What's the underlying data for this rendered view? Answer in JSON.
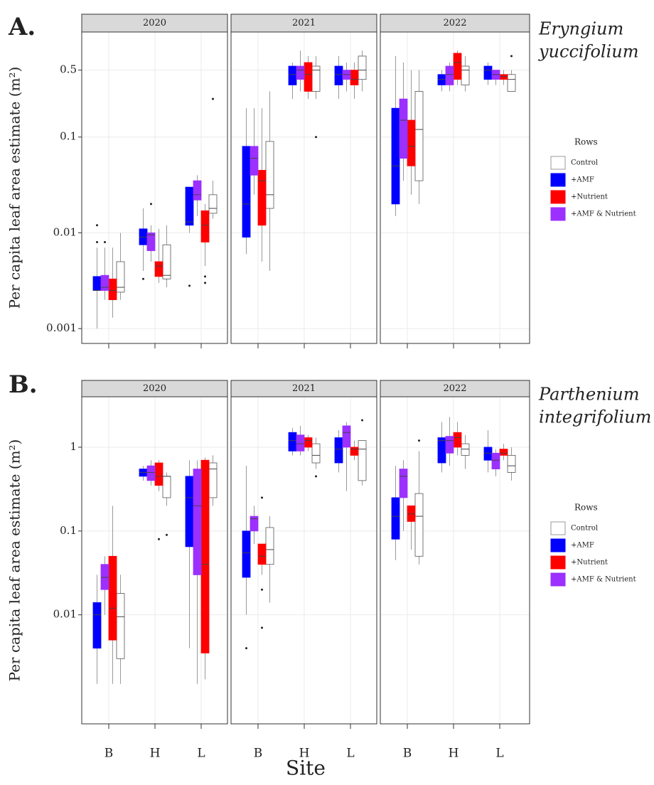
{
  "chart_data": [
    {
      "type": "box",
      "label": "A.",
      "species": [
        "Eryngium",
        "yuccifolium"
      ],
      "ylabel": "Per capita leaf area estimate (m²)",
      "facets": [
        "2020",
        "2021",
        "2022"
      ],
      "categories": [
        "B",
        "H",
        "L"
      ],
      "log": true,
      "grid": true,
      "ylim": [
        0.0007,
        1.25
      ],
      "yticks": [
        0.001,
        0.01,
        0.1,
        0.5
      ],
      "legend_title": "Rows",
      "legend": "right",
      "series": [
        {
          "name": "Control",
          "color": "#ffffff",
          "values": [
            [
              {
                "low": 0.002,
                "q1": 0.0024,
                "median": 0.0027,
                "q3": 0.005,
                "high": 0.01
              },
              {
                "low": 0.0027,
                "q1": 0.0033,
                "median": 0.0036,
                "q3": 0.0075,
                "high": 0.012
              },
              {
                "low": 0.014,
                "q1": 0.016,
                "median": 0.018,
                "q3": 0.025,
                "high": 0.035,
                "outliers": [
                  0.25
                ]
              }
            ],
            [
              {
                "low": 0.004,
                "q1": 0.018,
                "median": 0.025,
                "q3": 0.09,
                "high": 0.3
              },
              {
                "low": 0.25,
                "q1": 0.3,
                "median": 0.5,
                "q3": 0.55,
                "high": 0.7,
                "outliers": [
                  0.1
                ]
              },
              {
                "low": 0.3,
                "q1": 0.4,
                "median": 0.5,
                "q3": 0.7,
                "high": 0.8
              }
            ],
            [
              {
                "low": 0.02,
                "q1": 0.035,
                "median": 0.12,
                "q3": 0.3,
                "high": 0.5
              },
              {
                "low": 0.3,
                "q1": 0.35,
                "median": 0.5,
                "q3": 0.55,
                "high": 0.7
              },
              {
                "low": 0.3,
                "q1": 0.3,
                "median": 0.4,
                "q3": 0.45,
                "high": 0.5,
                "outliers": [
                  0.7
                ]
              }
            ]
          ]
        },
        {
          "name": "+AMF",
          "color": "#0000ff",
          "values": [
            [
              {
                "low": 0.001,
                "q1": 0.0025,
                "median": 0.0025,
                "q3": 0.0035,
                "high": 0.007,
                "outliers": [
                  0.008,
                  0.012
                ]
              },
              {
                "low": 0.004,
                "q1": 0.0075,
                "median": 0.009,
                "q3": 0.011,
                "high": 0.018,
                "outliers": [
                  0.0033
                ]
              },
              {
                "low": 0.01,
                "q1": 0.012,
                "median": 0.013,
                "q3": 0.03,
                "high": 0.03,
                "outliers": [
                  0.0028
                ]
              }
            ],
            [
              {
                "low": 0.006,
                "q1": 0.009,
                "median": 0.02,
                "q3": 0.08,
                "high": 0.2
              },
              {
                "low": 0.25,
                "q1": 0.35,
                "median": 0.45,
                "q3": 0.55,
                "high": 0.6
              },
              {
                "low": 0.25,
                "q1": 0.35,
                "median": 0.45,
                "q3": 0.55,
                "high": 0.7
              }
            ],
            [
              {
                "low": 0.015,
                "q1": 0.02,
                "median": 0.05,
                "q3": 0.2,
                "high": 0.7
              },
              {
                "low": 0.3,
                "q1": 0.35,
                "median": 0.4,
                "q3": 0.45,
                "high": 0.5
              },
              {
                "low": 0.35,
                "q1": 0.4,
                "median": 0.5,
                "q3": 0.55,
                "high": 0.6
              }
            ]
          ]
        },
        {
          "name": "+Nutrient",
          "color": "#ff0000",
          "values": [
            [
              {
                "low": 0.0013,
                "q1": 0.002,
                "median": 0.0025,
                "q3": 0.0033,
                "high": 0.007
              },
              {
                "low": 0.003,
                "q1": 0.0035,
                "median": 0.0045,
                "q3": 0.005,
                "high": 0.011
              },
              {
                "low": 0.0045,
                "q1": 0.008,
                "median": 0.012,
                "q3": 0.017,
                "high": 0.02,
                "outliers": [
                  0.0035,
                  0.003
                ]
              }
            ],
            [
              {
                "low": 0.005,
                "q1": 0.012,
                "median": 0.035,
                "q3": 0.045,
                "high": 0.2
              },
              {
                "low": 0.25,
                "q1": 0.3,
                "median": 0.45,
                "q3": 0.6,
                "high": 0.7
              },
              {
                "low": 0.25,
                "q1": 0.35,
                "median": 0.4,
                "q3": 0.5,
                "high": 0.6
              }
            ],
            [
              {
                "low": 0.025,
                "q1": 0.05,
                "median": 0.08,
                "q3": 0.15,
                "high": 0.5
              },
              {
                "low": 0.35,
                "q1": 0.4,
                "median": 0.6,
                "q3": 0.75,
                "high": 0.8
              },
              {
                "low": 0.35,
                "q1": 0.4,
                "median": 0.43,
                "q3": 0.45,
                "high": 0.5
              }
            ]
          ]
        },
        {
          "name": "+AMF & Nutrient",
          "color": "#9b30ff",
          "values": [
            [
              {
                "low": 0.002,
                "q1": 0.0025,
                "median": 0.0027,
                "q3": 0.0036,
                "high": 0.007,
                "outliers": [
                  0.008
                ]
              },
              {
                "low": 0.005,
                "q1": 0.0065,
                "median": 0.0095,
                "q3": 0.01,
                "high": 0.012,
                "outliers": [
                  0.02
                ]
              },
              {
                "low": 0.015,
                "q1": 0.022,
                "median": 0.025,
                "q3": 0.035,
                "high": 0.04
              }
            ],
            [
              {
                "low": 0.025,
                "q1": 0.04,
                "median": 0.06,
                "q3": 0.08,
                "high": 0.2
              },
              {
                "low": 0.3,
                "q1": 0.4,
                "median": 0.5,
                "q3": 0.55,
                "high": 0.8
              },
              {
                "low": 0.3,
                "q1": 0.4,
                "median": 0.45,
                "q3": 0.5,
                "high": 0.6
              }
            ],
            [
              {
                "low": 0.035,
                "q1": 0.06,
                "median": 0.15,
                "q3": 0.25,
                "high": 0.6
              },
              {
                "low": 0.3,
                "q1": 0.35,
                "median": 0.45,
                "q3": 0.55,
                "high": 0.6
              },
              {
                "low": 0.35,
                "q1": 0.4,
                "median": 0.45,
                "q3": 0.5,
                "high": 0.5
              }
            ]
          ]
        }
      ]
    },
    {
      "type": "box",
      "label": "B.",
      "species": [
        "Parthenium",
        "integrifolium"
      ],
      "ylabel": "Per capita leaf area estimate (m²)",
      "facets": [
        "2020",
        "2021",
        "2022"
      ],
      "categories": [
        "B",
        "H",
        "L"
      ],
      "log": true,
      "grid": true,
      "ylim": [
        0.0005,
        4
      ],
      "yticks": [
        0.01,
        0.1,
        1
      ],
      "legend_title": "Rows",
      "legend": "right",
      "xlabel": "Site",
      "series": [
        {
          "name": "Control",
          "color": "#ffffff",
          "values": [
            [
              {
                "low": 0.0015,
                "q1": 0.003,
                "median": 0.0095,
                "q3": 0.018,
                "high": 0.03
              },
              {
                "low": 0.2,
                "q1": 0.25,
                "median": 0.45,
                "q3": 0.45,
                "high": 0.5,
                "outliers": [
                  0.09
                ]
              },
              {
                "low": 0.2,
                "q1": 0.25,
                "median": 0.55,
                "q3": 0.65,
                "high": 0.8
              }
            ],
            [
              {
                "low": 0.014,
                "q1": 0.04,
                "median": 0.06,
                "q3": 0.11,
                "high": 0.15
              },
              {
                "low": 0.55,
                "q1": 0.65,
                "median": 0.8,
                "q3": 1.1,
                "high": 1.3,
                "outliers": [
                  0.45
                ]
              },
              {
                "low": 0.35,
                "q1": 0.4,
                "median": 0.95,
                "q3": 1.2,
                "high": 1.2,
                "outliers": [
                  2.1
                ]
              }
            ],
            [
              {
                "low": 0.04,
                "q1": 0.05,
                "median": 0.15,
                "q3": 0.28,
                "high": 0.9,
                "outliers": [
                  1.2
                ]
              },
              {
                "low": 0.55,
                "q1": 0.8,
                "median": 0.95,
                "q3": 1.1,
                "high": 1.4
              },
              {
                "low": 0.4,
                "q1": 0.5,
                "median": 0.6,
                "q3": 0.8,
                "high": 1
              }
            ]
          ]
        },
        {
          "name": "+AMF",
          "color": "#0000ff",
          "values": [
            [
              {
                "low": 0.0015,
                "q1": 0.004,
                "median": 0.01,
                "q3": 0.014,
                "high": 0.03
              },
              {
                "low": 0.4,
                "q1": 0.45,
                "median": 0.5,
                "q3": 0.55,
                "high": 0.6
              },
              {
                "low": 0.004,
                "q1": 0.065,
                "median": 0.25,
                "q3": 0.45,
                "high": 0.7
              }
            ],
            [
              {
                "low": 0.01,
                "q1": 0.028,
                "median": 0.055,
                "q3": 0.1,
                "high": 0.6,
                "outliers": [
                  0.004
                ]
              },
              {
                "low": 0.8,
                "q1": 0.9,
                "median": 1.2,
                "q3": 1.5,
                "high": 1.7
              },
              {
                "low": 0.5,
                "q1": 0.65,
                "median": 0.95,
                "q3": 1.3,
                "high": 1.6
              }
            ],
            [
              {
                "low": 0.045,
                "q1": 0.08,
                "median": 0.15,
                "q3": 0.25,
                "high": 0.6
              },
              {
                "low": 0.5,
                "q1": 0.65,
                "median": 1.2,
                "q3": 1.3,
                "high": 2
              },
              {
                "low": 0.5,
                "q1": 0.7,
                "median": 0.85,
                "q3": 1,
                "high": 1.6
              }
            ]
          ]
        },
        {
          "name": "+Nutrient",
          "color": "#ff0000",
          "values": [
            [
              {
                "low": 0.0015,
                "q1": 0.005,
                "median": 0.012,
                "q3": 0.05,
                "high": 0.2
              },
              {
                "low": 0.3,
                "q1": 0.35,
                "median": 0.45,
                "q3": 0.65,
                "high": 0.7,
                "outliers": [
                  0.08
                ]
              },
              {
                "low": 0.0017,
                "q1": 0.0035,
                "median": 0.04,
                "q3": 0.7,
                "high": 0.75
              }
            ],
            [
              {
                "low": 0.03,
                "q1": 0.04,
                "median": 0.05,
                "q3": 0.07,
                "high": 0.07,
                "outliers": [
                  0.25,
                  0.02,
                  0.007
                ]
              },
              {
                "low": 0.9,
                "q1": 1,
                "median": 1.2,
                "q3": 1.3,
                "high": 1.4
              },
              {
                "low": 0.7,
                "q1": 0.8,
                "median": 0.95,
                "q3": 1,
                "high": 1.2
              }
            ],
            [
              {
                "low": 0.06,
                "q1": 0.13,
                "median": 0.16,
                "q3": 0.2,
                "high": 0.2
              },
              {
                "low": 0.8,
                "q1": 1,
                "median": 1.3,
                "q3": 1.5,
                "high": 2
              },
              {
                "low": 0.7,
                "q1": 0.8,
                "median": 0.85,
                "q3": 0.95,
                "high": 1.1
              }
            ]
          ]
        },
        {
          "name": "+AMF & Nutrient",
          "color": "#9b30ff",
          "values": [
            [
              {
                "low": 0.01,
                "q1": 0.02,
                "median": 0.028,
                "q3": 0.04,
                "high": 0.05
              },
              {
                "low": 0.35,
                "q1": 0.4,
                "median": 0.5,
                "q3": 0.6,
                "high": 0.7
              },
              {
                "low": 0.0015,
                "q1": 0.03,
                "median": 0.2,
                "q3": 0.55,
                "high": 0.7
              }
            ],
            [
              {
                "low": 0.07,
                "q1": 0.1,
                "median": 0.14,
                "q3": 0.15,
                "high": 0.2
              },
              {
                "low": 0.8,
                "q1": 0.9,
                "median": 1.1,
                "q3": 1.4,
                "high": 1.8
              },
              {
                "low": 0.3,
                "q1": 1,
                "median": 1.5,
                "q3": 1.8,
                "high": 2
              }
            ],
            [
              {
                "low": 0.1,
                "q1": 0.25,
                "median": 0.45,
                "q3": 0.55,
                "high": 0.7
              },
              {
                "low": 0.6,
                "q1": 0.85,
                "median": 1.2,
                "q3": 1.35,
                "high": 2.3
              },
              {
                "low": 0.45,
                "q1": 0.55,
                "median": 0.7,
                "q3": 0.85,
                "high": 0.95
              }
            ]
          ]
        }
      ]
    }
  ]
}
